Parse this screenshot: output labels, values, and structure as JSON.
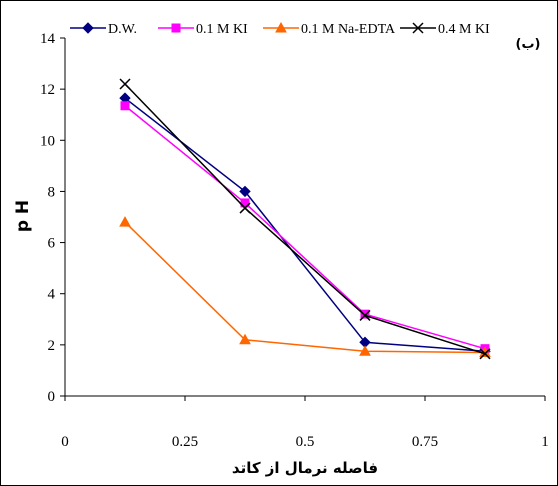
{
  "chart_data": {
    "type": "line",
    "title": "",
    "panel_label": "(ب)",
    "xlabel": "فاصله نرمال از کاتد",
    "ylabel": "p H",
    "xlim": [
      0,
      1
    ],
    "ylim": [
      0,
      14
    ],
    "xticks": [
      0,
      0.25,
      0.5,
      0.75,
      1
    ],
    "xtick_labels": [
      "0",
      "0.25",
      "0.5",
      "0.75",
      "1"
    ],
    "yticks": [
      0,
      2,
      4,
      6,
      8,
      10,
      12,
      14
    ],
    "ytick_labels": [
      "0",
      "2",
      "4",
      "6",
      "8",
      "10",
      "12",
      "14"
    ],
    "grid": false,
    "legend_position": "top",
    "series": [
      {
        "name": "D.W.",
        "color": "#000080",
        "marker": "diamond",
        "x": [
          0.125,
          0.375,
          0.625,
          0.875
        ],
        "y": [
          11.65,
          8.0,
          2.1,
          1.75
        ]
      },
      {
        "name": "0.1 M KI",
        "color": "#ff00ff",
        "marker": "square",
        "x": [
          0.125,
          0.375,
          0.625,
          0.875
        ],
        "y": [
          11.35,
          7.55,
          3.2,
          1.85
        ]
      },
      {
        "name": "0.1 M Na-EDTA",
        "color": "#ff6600",
        "marker": "triangle",
        "x": [
          0.125,
          0.375,
          0.625,
          0.875
        ],
        "y": [
          6.8,
          2.2,
          1.75,
          1.7
        ]
      },
      {
        "name": "0.4 M KI",
        "color": "#000000",
        "marker": "x",
        "x": [
          0.125,
          0.375,
          0.625,
          0.875
        ],
        "y": [
          12.2,
          7.35,
          3.15,
          1.65
        ]
      }
    ]
  }
}
